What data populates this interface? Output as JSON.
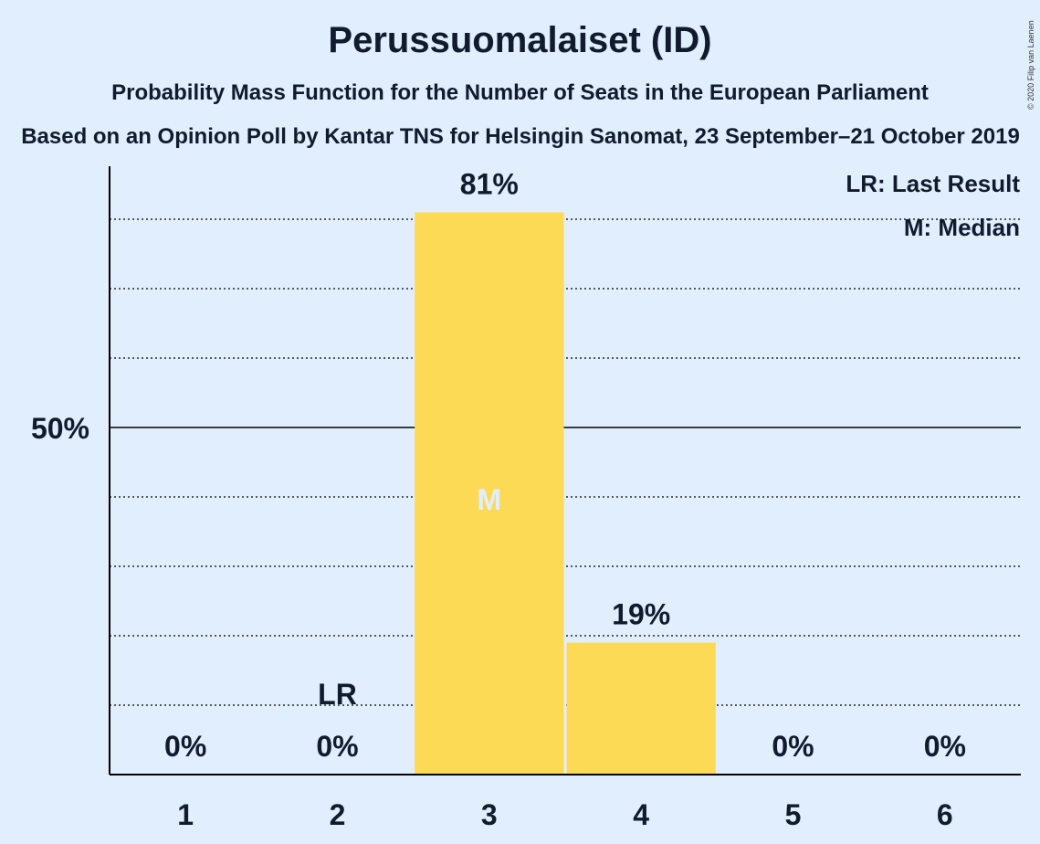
{
  "chart_data": {
    "type": "bar",
    "title": "Perussuomalaiset (ID)",
    "subtitle": "Probability Mass Function for the Number of Seats in the European Parliament",
    "subtitle2": "Based on an Opinion Poll by Kantar TNS for Helsingin Sanomat, 23 September–21 October 2019",
    "copyright": "© 2020 Filip van Laenen",
    "categories": [
      "1",
      "2",
      "3",
      "4",
      "5",
      "6"
    ],
    "values": [
      0,
      0,
      81,
      19,
      0,
      0
    ],
    "value_labels": [
      "0%",
      "0%",
      "81%",
      "19%",
      "0%",
      "0%"
    ],
    "ylim": [
      0,
      88
    ],
    "ytick_label": "50%",
    "ytick_value": 50,
    "grid_values": [
      10,
      20,
      30,
      40,
      60,
      70,
      80
    ],
    "last_result_category": "2",
    "last_result_label": "LR",
    "median_category": "3",
    "median_label": "M",
    "legend": [
      "LR: Last Result",
      "M: Median"
    ],
    "legend_position": "top-right",
    "bar_color": "#fdda55",
    "median_color": "#e1eefe",
    "grid_color": "#000000"
  }
}
